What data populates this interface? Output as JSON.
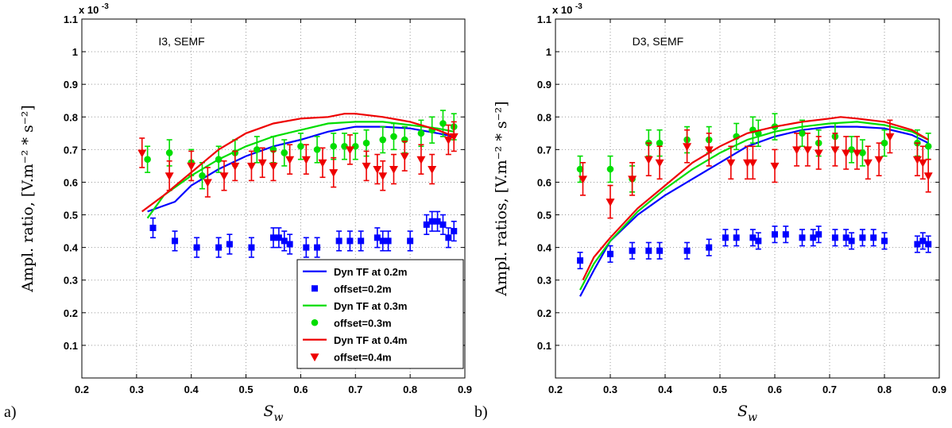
{
  "chart_data": [
    {
      "type": "line",
      "panel_label": "a)",
      "annotation": "I3, SEMF",
      "exponent_label": "x 10",
      "exponent_power": "-3",
      "xlabel_main": "S",
      "xlabel_sub": "w",
      "ylabel": "Ampl. ratio, [V.m⁻² * s⁻²]",
      "xlim": [
        0.2,
        0.9
      ],
      "ylim": [
        0,
        1.1
      ],
      "xticks": [
        "0.2",
        "0.3",
        "0.4",
        "0.5",
        "0.6",
        "0.7",
        "0.8",
        "0.9"
      ],
      "yticks": [
        "0.1",
        "0.2",
        "0.3",
        "0.4",
        "0.5",
        "0.6",
        "0.7",
        "0.8",
        "0.9",
        "1",
        "1.1"
      ],
      "grid": true,
      "legend_position": "bottom-right",
      "series": [
        {
          "name": "Dyn TF at 0.2m",
          "kind": "line",
          "color": "#0000ff",
          "x": [
            0.32,
            0.37,
            0.4,
            0.45,
            0.5,
            0.55,
            0.6,
            0.65,
            0.7,
            0.75,
            0.8,
            0.85,
            0.88
          ],
          "y": [
            0.51,
            0.54,
            0.59,
            0.64,
            0.68,
            0.71,
            0.73,
            0.755,
            0.77,
            0.77,
            0.765,
            0.75,
            0.74
          ]
        },
        {
          "name": "offset=0.2m",
          "kind": "marker",
          "marker": "square",
          "color": "#0000ff",
          "x": [
            0.33,
            0.37,
            0.41,
            0.45,
            0.47,
            0.51,
            0.55,
            0.56,
            0.57,
            0.58,
            0.61,
            0.63,
            0.67,
            0.69,
            0.71,
            0.74,
            0.75,
            0.76,
            0.8,
            0.83,
            0.84,
            0.85,
            0.86,
            0.87,
            0.88
          ],
          "y": [
            0.46,
            0.42,
            0.4,
            0.4,
            0.41,
            0.4,
            0.43,
            0.43,
            0.42,
            0.41,
            0.4,
            0.4,
            0.42,
            0.42,
            0.42,
            0.43,
            0.42,
            0.42,
            0.42,
            0.47,
            0.48,
            0.48,
            0.47,
            0.43,
            0.45
          ],
          "err": 0.03
        },
        {
          "name": "Dyn TF at 0.3m",
          "kind": "line",
          "color": "#00dd00",
          "x": [
            0.32,
            0.35,
            0.4,
            0.45,
            0.5,
            0.55,
            0.6,
            0.65,
            0.7,
            0.75,
            0.8,
            0.85,
            0.88
          ],
          "y": [
            0.49,
            0.56,
            0.62,
            0.67,
            0.71,
            0.74,
            0.76,
            0.78,
            0.785,
            0.785,
            0.775,
            0.765,
            0.755
          ]
        },
        {
          "name": "offset=0.3m",
          "kind": "marker",
          "marker": "circle",
          "color": "#00dd00",
          "x": [
            0.32,
            0.36,
            0.4,
            0.42,
            0.45,
            0.48,
            0.52,
            0.55,
            0.57,
            0.6,
            0.63,
            0.66,
            0.68,
            0.7,
            0.72,
            0.75,
            0.77,
            0.79,
            0.82,
            0.84,
            0.86,
            0.88
          ],
          "y": [
            0.67,
            0.69,
            0.66,
            0.62,
            0.67,
            0.69,
            0.7,
            0.7,
            0.69,
            0.71,
            0.7,
            0.71,
            0.71,
            0.71,
            0.72,
            0.73,
            0.74,
            0.73,
            0.75,
            0.76,
            0.78,
            0.77
          ],
          "err": 0.04
        },
        {
          "name": "Dyn TF at 0.4m",
          "kind": "line",
          "color": "#ee0000",
          "x": [
            0.31,
            0.35,
            0.4,
            0.45,
            0.5,
            0.55,
            0.6,
            0.65,
            0.68,
            0.7,
            0.75,
            0.8,
            0.85,
            0.88
          ],
          "y": [
            0.51,
            0.56,
            0.63,
            0.7,
            0.75,
            0.78,
            0.795,
            0.8,
            0.81,
            0.81,
            0.8,
            0.785,
            0.76,
            0.74
          ]
        },
        {
          "name": "offset=0.4m",
          "kind": "marker",
          "marker": "triangle",
          "color": "#ee0000",
          "x": [
            0.31,
            0.36,
            0.4,
            0.43,
            0.46,
            0.48,
            0.51,
            0.53,
            0.55,
            0.58,
            0.61,
            0.64,
            0.66,
            0.69,
            0.72,
            0.74,
            0.75,
            0.77,
            0.79,
            0.82,
            0.84,
            0.87,
            0.88
          ],
          "y": [
            0.69,
            0.62,
            0.65,
            0.6,
            0.62,
            0.65,
            0.65,
            0.66,
            0.65,
            0.67,
            0.67,
            0.66,
            0.63,
            0.7,
            0.65,
            0.64,
            0.62,
            0.64,
            0.68,
            0.67,
            0.64,
            0.73,
            0.74
          ],
          "err": 0.045
        }
      ]
    },
    {
      "type": "line",
      "panel_label": "b)",
      "annotation": "D3, SEMF",
      "exponent_label": "x 10",
      "exponent_power": "-3",
      "xlabel_main": "S",
      "xlabel_sub": "w",
      "ylabel": "Ampl. ratios, [V.m⁻² * s⁻²]",
      "xlim": [
        0.2,
        0.9
      ],
      "ylim": [
        0,
        1.1
      ],
      "xticks": [
        "0.2",
        "0.3",
        "0.4",
        "0.5",
        "0.6",
        "0.7",
        "0.8",
        "0.9"
      ],
      "yticks": [
        "0.1",
        "0.2",
        "0.3",
        "0.4",
        "0.5",
        "0.6",
        "0.7",
        "0.8",
        "0.9",
        "1",
        "1.1"
      ],
      "grid": true,
      "legend_position": "none",
      "series": [
        {
          "kind": "line",
          "color": "#0000ff",
          "x": [
            0.245,
            0.27,
            0.3,
            0.35,
            0.4,
            0.45,
            0.5,
            0.55,
            0.6,
            0.65,
            0.7,
            0.75,
            0.8,
            0.85,
            0.88
          ],
          "y": [
            0.25,
            0.33,
            0.42,
            0.5,
            0.56,
            0.61,
            0.66,
            0.71,
            0.74,
            0.76,
            0.77,
            0.77,
            0.765,
            0.745,
            0.72
          ]
        },
        {
          "kind": "marker",
          "marker": "square",
          "color": "#0000ff",
          "x": [
            0.245,
            0.3,
            0.34,
            0.37,
            0.39,
            0.44,
            0.48,
            0.51,
            0.53,
            0.56,
            0.57,
            0.6,
            0.62,
            0.65,
            0.67,
            0.68,
            0.71,
            0.73,
            0.74,
            0.76,
            0.78,
            0.8,
            0.86,
            0.87,
            0.88
          ],
          "y": [
            0.36,
            0.38,
            0.39,
            0.39,
            0.39,
            0.39,
            0.4,
            0.43,
            0.43,
            0.43,
            0.42,
            0.44,
            0.44,
            0.43,
            0.43,
            0.44,
            0.43,
            0.43,
            0.42,
            0.43,
            0.43,
            0.42,
            0.41,
            0.42,
            0.41
          ],
          "err": 0.025
        },
        {
          "kind": "line",
          "color": "#00dd00",
          "x": [
            0.245,
            0.27,
            0.3,
            0.35,
            0.4,
            0.45,
            0.5,
            0.55,
            0.6,
            0.65,
            0.7,
            0.75,
            0.8,
            0.85,
            0.88
          ],
          "y": [
            0.27,
            0.35,
            0.42,
            0.51,
            0.58,
            0.64,
            0.69,
            0.73,
            0.755,
            0.77,
            0.78,
            0.785,
            0.775,
            0.755,
            0.73
          ]
        },
        {
          "kind": "marker",
          "marker": "circle",
          "color": "#00dd00",
          "x": [
            0.245,
            0.3,
            0.34,
            0.37,
            0.39,
            0.44,
            0.48,
            0.53,
            0.56,
            0.57,
            0.6,
            0.65,
            0.68,
            0.71,
            0.74,
            0.76,
            0.8,
            0.86,
            0.88
          ],
          "y": [
            0.64,
            0.64,
            0.61,
            0.72,
            0.72,
            0.73,
            0.73,
            0.74,
            0.76,
            0.75,
            0.77,
            0.75,
            0.72,
            0.74,
            0.7,
            0.69,
            0.72,
            0.72,
            0.71
          ],
          "err": 0.04
        },
        {
          "kind": "line",
          "color": "#ee0000",
          "x": [
            0.25,
            0.27,
            0.3,
            0.35,
            0.4,
            0.45,
            0.5,
            0.55,
            0.6,
            0.65,
            0.7,
            0.72,
            0.75,
            0.8,
            0.85,
            0.88
          ],
          "y": [
            0.3,
            0.37,
            0.43,
            0.52,
            0.59,
            0.66,
            0.71,
            0.75,
            0.77,
            0.785,
            0.795,
            0.8,
            0.795,
            0.785,
            0.76,
            0.73
          ]
        },
        {
          "kind": "marker",
          "marker": "triangle",
          "color": "#ee0000",
          "x": [
            0.25,
            0.3,
            0.34,
            0.37,
            0.39,
            0.44,
            0.48,
            0.52,
            0.55,
            0.56,
            0.6,
            0.64,
            0.66,
            0.68,
            0.71,
            0.73,
            0.75,
            0.77,
            0.79,
            0.81,
            0.86,
            0.87,
            0.88
          ],
          "y": [
            0.61,
            0.54,
            0.61,
            0.67,
            0.66,
            0.71,
            0.7,
            0.66,
            0.66,
            0.66,
            0.65,
            0.7,
            0.7,
            0.69,
            0.7,
            0.69,
            0.69,
            0.66,
            0.67,
            0.74,
            0.67,
            0.66,
            0.62
          ],
          "err": 0.05
        }
      ]
    }
  ]
}
